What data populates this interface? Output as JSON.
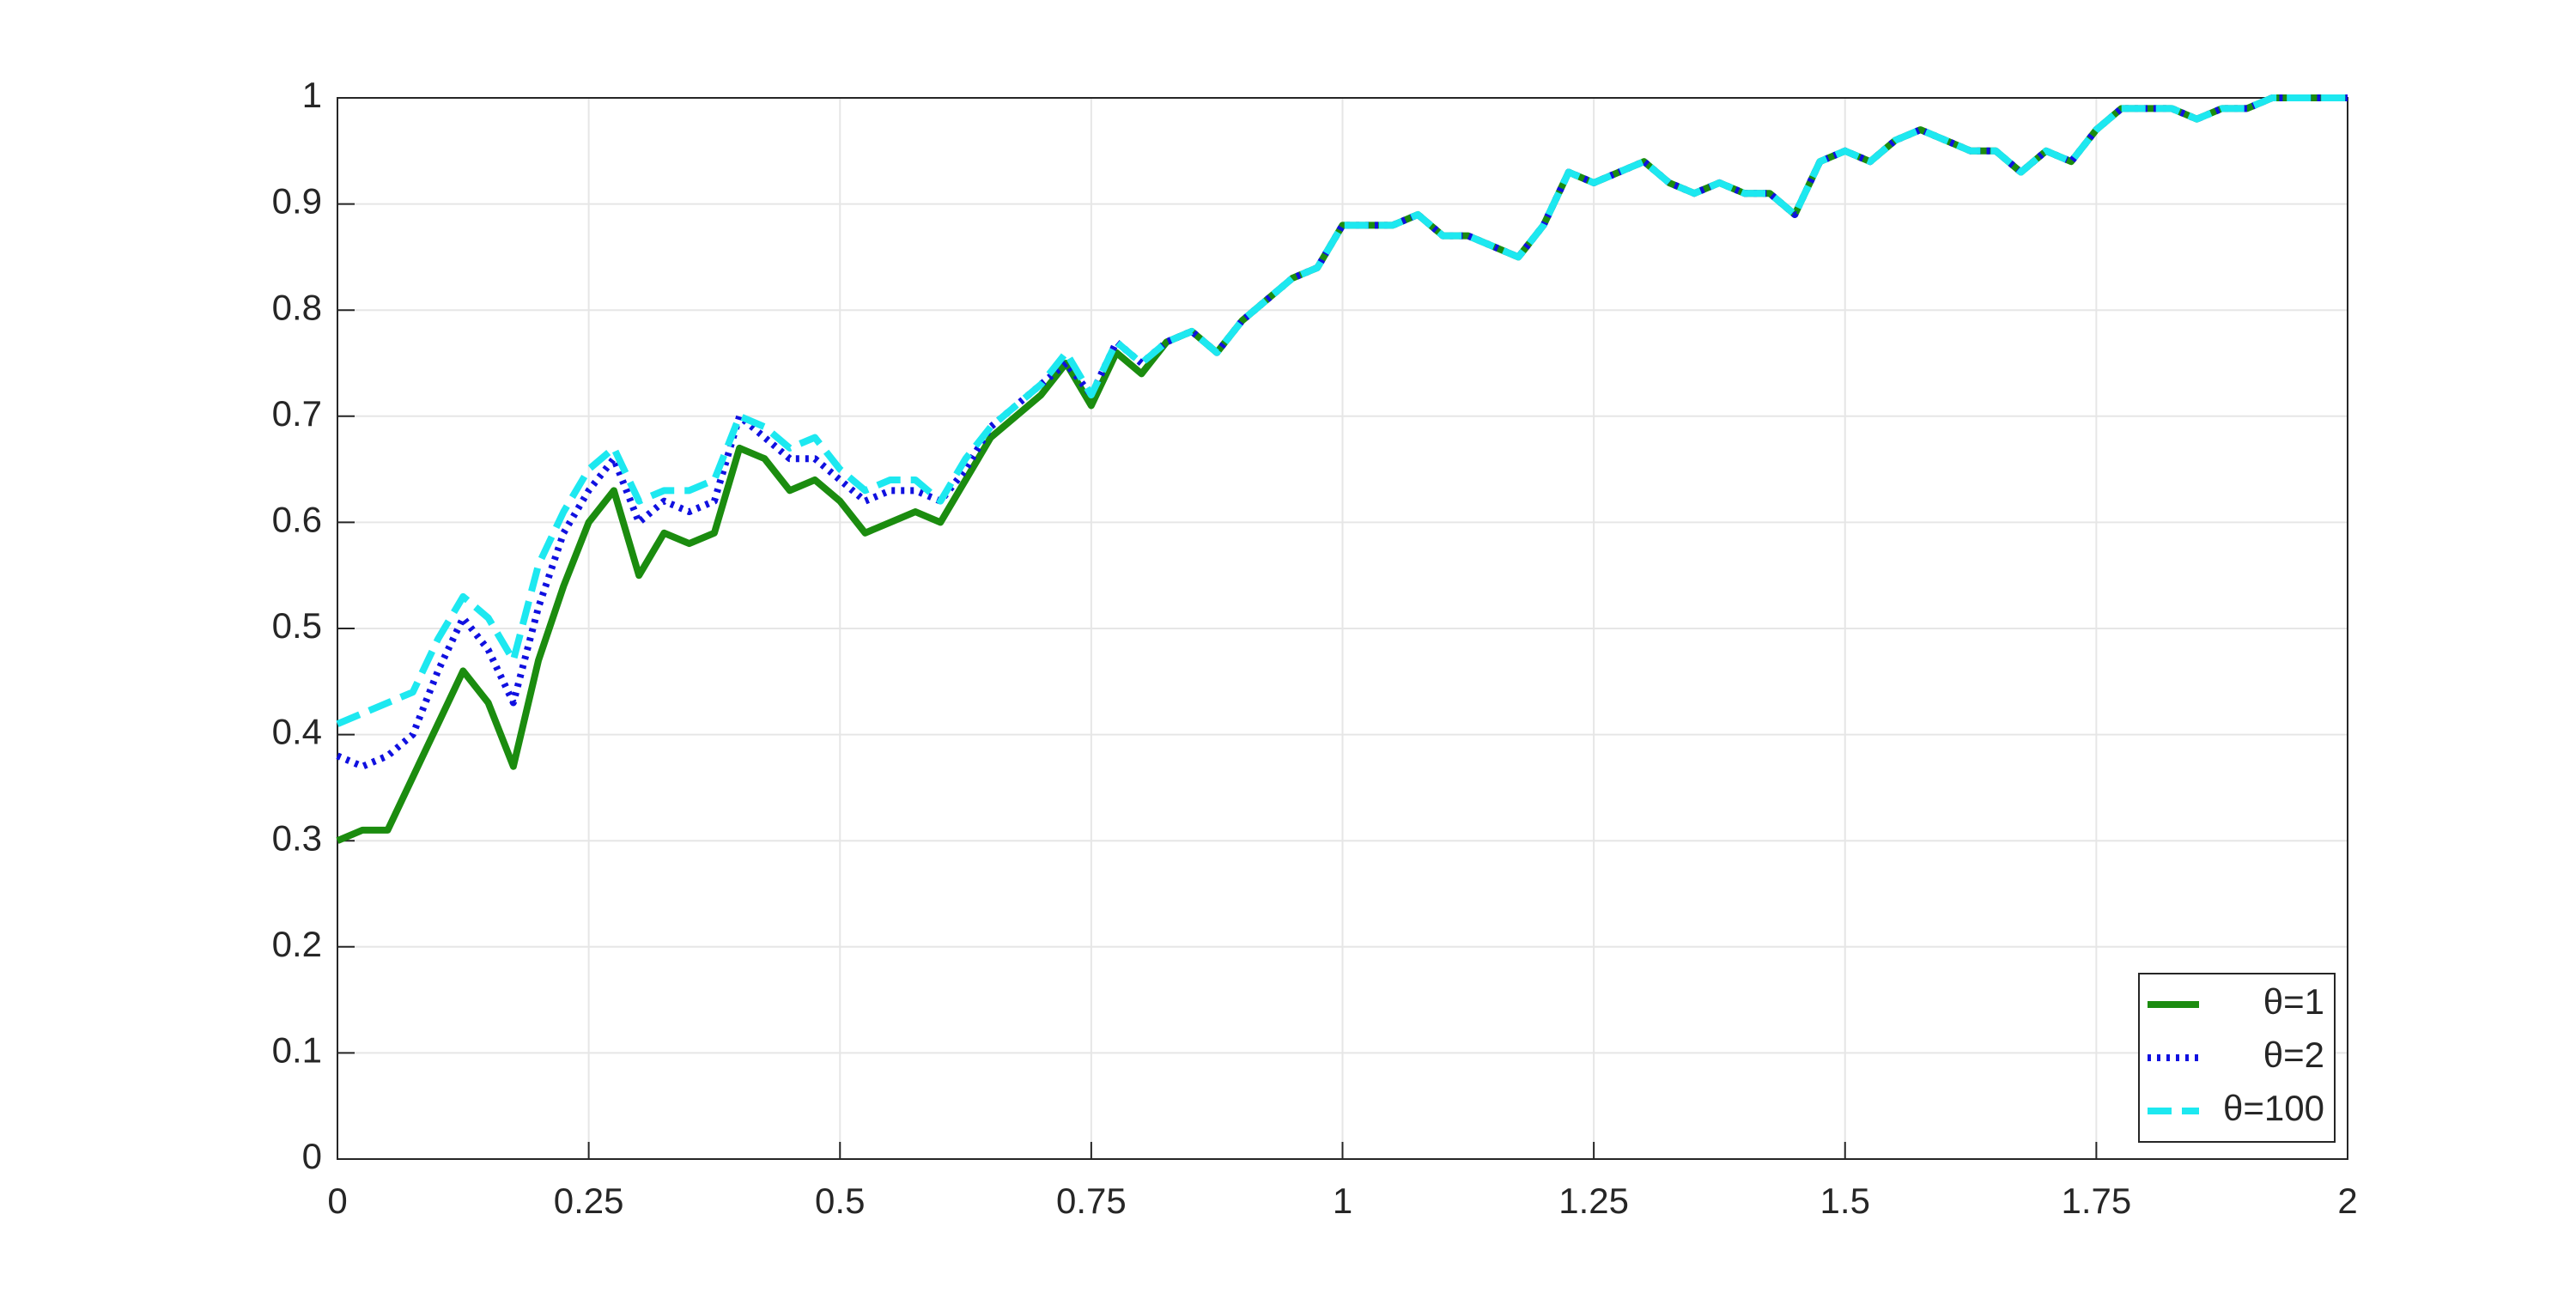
{
  "chart_data": {
    "type": "line",
    "x": [
      0,
      0.025,
      0.05,
      0.075,
      0.1,
      0.125,
      0.15,
      0.175,
      0.2,
      0.225,
      0.25,
      0.275,
      0.3,
      0.325,
      0.35,
      0.375,
      0.4,
      0.425,
      0.45,
      0.475,
      0.5,
      0.525,
      0.55,
      0.575,
      0.6,
      0.625,
      0.65,
      0.675,
      0.7,
      0.725,
      0.75,
      0.775,
      0.8,
      0.825,
      0.85,
      0.875,
      0.9,
      0.925,
      0.95,
      0.975,
      1,
      1.025,
      1.05,
      1.075,
      1.1,
      1.125,
      1.15,
      1.175,
      1.2,
      1.225,
      1.25,
      1.275,
      1.3,
      1.325,
      1.35,
      1.375,
      1.4,
      1.425,
      1.45,
      1.475,
      1.5,
      1.525,
      1.55,
      1.575,
      1.6,
      1.625,
      1.65,
      1.675,
      1.7,
      1.725,
      1.75,
      1.775,
      1.8,
      1.825,
      1.85,
      1.875,
      1.9,
      1.925,
      1.95,
      1.975,
      2
    ],
    "series": [
      {
        "name": "θ=1",
        "color": "#1b8c0f",
        "dash": "solid",
        "values": [
          0.3,
          0.31,
          0.31,
          0.36,
          0.41,
          0.46,
          0.43,
          0.37,
          0.47,
          0.54,
          0.6,
          0.63,
          0.55,
          0.59,
          0.58,
          0.59,
          0.67,
          0.66,
          0.63,
          0.64,
          0.62,
          0.59,
          0.6,
          0.61,
          0.6,
          0.64,
          0.68,
          0.7,
          0.72,
          0.75,
          0.71,
          0.76,
          0.74,
          0.77,
          0.78,
          0.76,
          0.79,
          0.81,
          0.83,
          0.84,
          0.88,
          0.88,
          0.88,
          0.89,
          0.87,
          0.87,
          0.86,
          0.85,
          0.88,
          0.93,
          0.92,
          0.93,
          0.94,
          0.92,
          0.91,
          0.92,
          0.91,
          0.91,
          0.89,
          0.94,
          0.95,
          0.94,
          0.96,
          0.97,
          0.96,
          0.95,
          0.95,
          0.93,
          0.95,
          0.94,
          0.97,
          0.99,
          0.99,
          0.99,
          0.98,
          0.99,
          0.99,
          1,
          1,
          1,
          1
        ]
      },
      {
        "name": "θ=2",
        "color": "#1010e0",
        "dash": "dotted",
        "values": [
          0.38,
          0.37,
          0.38,
          0.4,
          0.46,
          0.51,
          0.48,
          0.43,
          0.52,
          0.59,
          0.63,
          0.66,
          0.6,
          0.62,
          0.61,
          0.62,
          0.7,
          0.68,
          0.66,
          0.66,
          0.64,
          0.62,
          0.63,
          0.63,
          0.62,
          0.65,
          0.69,
          0.71,
          0.73,
          0.75,
          0.72,
          0.77,
          0.75,
          0.77,
          0.78,
          0.76,
          0.79,
          0.81,
          0.83,
          0.84,
          0.88,
          0.88,
          0.88,
          0.89,
          0.87,
          0.87,
          0.86,
          0.85,
          0.88,
          0.93,
          0.92,
          0.93,
          0.94,
          0.92,
          0.91,
          0.92,
          0.91,
          0.91,
          0.89,
          0.94,
          0.95,
          0.94,
          0.96,
          0.97,
          0.96,
          0.95,
          0.95,
          0.93,
          0.95,
          0.94,
          0.97,
          0.99,
          0.99,
          0.99,
          0.98,
          0.99,
          0.99,
          1,
          1,
          1,
          1
        ]
      },
      {
        "name": "θ=100",
        "color": "#1de8f0",
        "dash": "dashed",
        "values": [
          0.41,
          0.42,
          0.43,
          0.44,
          0.49,
          0.53,
          0.51,
          0.47,
          0.56,
          0.61,
          0.65,
          0.67,
          0.62,
          0.63,
          0.63,
          0.64,
          0.7,
          0.69,
          0.67,
          0.68,
          0.65,
          0.63,
          0.64,
          0.64,
          0.62,
          0.66,
          0.69,
          0.71,
          0.73,
          0.76,
          0.72,
          0.77,
          0.75,
          0.77,
          0.78,
          0.76,
          0.79,
          0.81,
          0.83,
          0.84,
          0.88,
          0.88,
          0.88,
          0.89,
          0.87,
          0.87,
          0.86,
          0.85,
          0.88,
          0.93,
          0.92,
          0.93,
          0.94,
          0.92,
          0.91,
          0.92,
          0.91,
          0.91,
          0.89,
          0.94,
          0.95,
          0.94,
          0.96,
          0.97,
          0.96,
          0.95,
          0.95,
          0.93,
          0.95,
          0.94,
          0.97,
          0.99,
          0.99,
          0.99,
          0.98,
          0.99,
          0.99,
          1,
          1,
          1,
          1
        ]
      }
    ],
    "xlim": [
      0,
      2
    ],
    "xticks": [
      0,
      0.25,
      0.5,
      0.75,
      1,
      1.25,
      1.5,
      1.75,
      2
    ],
    "ylim": [
      0,
      1
    ],
    "yticks": [
      0,
      0.1,
      0.2,
      0.3,
      0.4,
      0.5,
      0.6,
      0.7,
      0.8,
      0.9,
      1
    ],
    "grid": true,
    "legend": "bottom-right"
  }
}
